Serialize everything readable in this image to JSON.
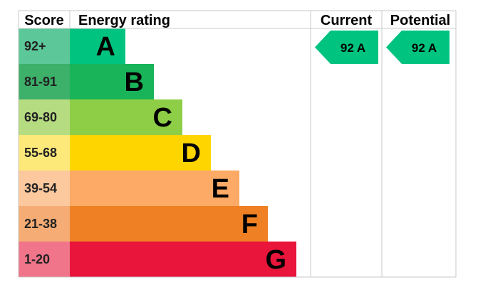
{
  "headers": {
    "score": "Score",
    "rating": "Energy rating",
    "current": "Current",
    "potential": "Potential"
  },
  "chart_data": {
    "type": "bar",
    "title": "",
    "bands": [
      {
        "score": "92+",
        "letter": "A",
        "score_color": "#5cc89a",
        "bar_color": "#00c380",
        "width_rank": 1
      },
      {
        "score": "81-91",
        "letter": "B",
        "score_color": "#3db06a",
        "bar_color": "#19b459",
        "width_rank": 2
      },
      {
        "score": "69-80",
        "letter": "C",
        "score_color": "#b6dc82",
        "bar_color": "#8dce46",
        "width_rank": 3
      },
      {
        "score": "55-68",
        "letter": "D",
        "score_color": "#fde97a",
        "bar_color": "#ffd500",
        "width_rank": 4
      },
      {
        "score": "39-54",
        "letter": "E",
        "score_color": "#fcc99e",
        "bar_color": "#fcaa65",
        "width_rank": 5
      },
      {
        "score": "21-38",
        "letter": "F",
        "score_color": "#f5ad75",
        "bar_color": "#ef8023",
        "width_rank": 6
      },
      {
        "score": "1-20",
        "letter": "G",
        "score_color": "#f0758a",
        "bar_color": "#e9153b",
        "width_rank": 7
      }
    ],
    "current": {
      "value": 92,
      "letter": "A",
      "label": "92  A",
      "color": "#00c380"
    },
    "potential": {
      "value": 92,
      "letter": "A",
      "label": "92  A",
      "color": "#00c380"
    }
  }
}
